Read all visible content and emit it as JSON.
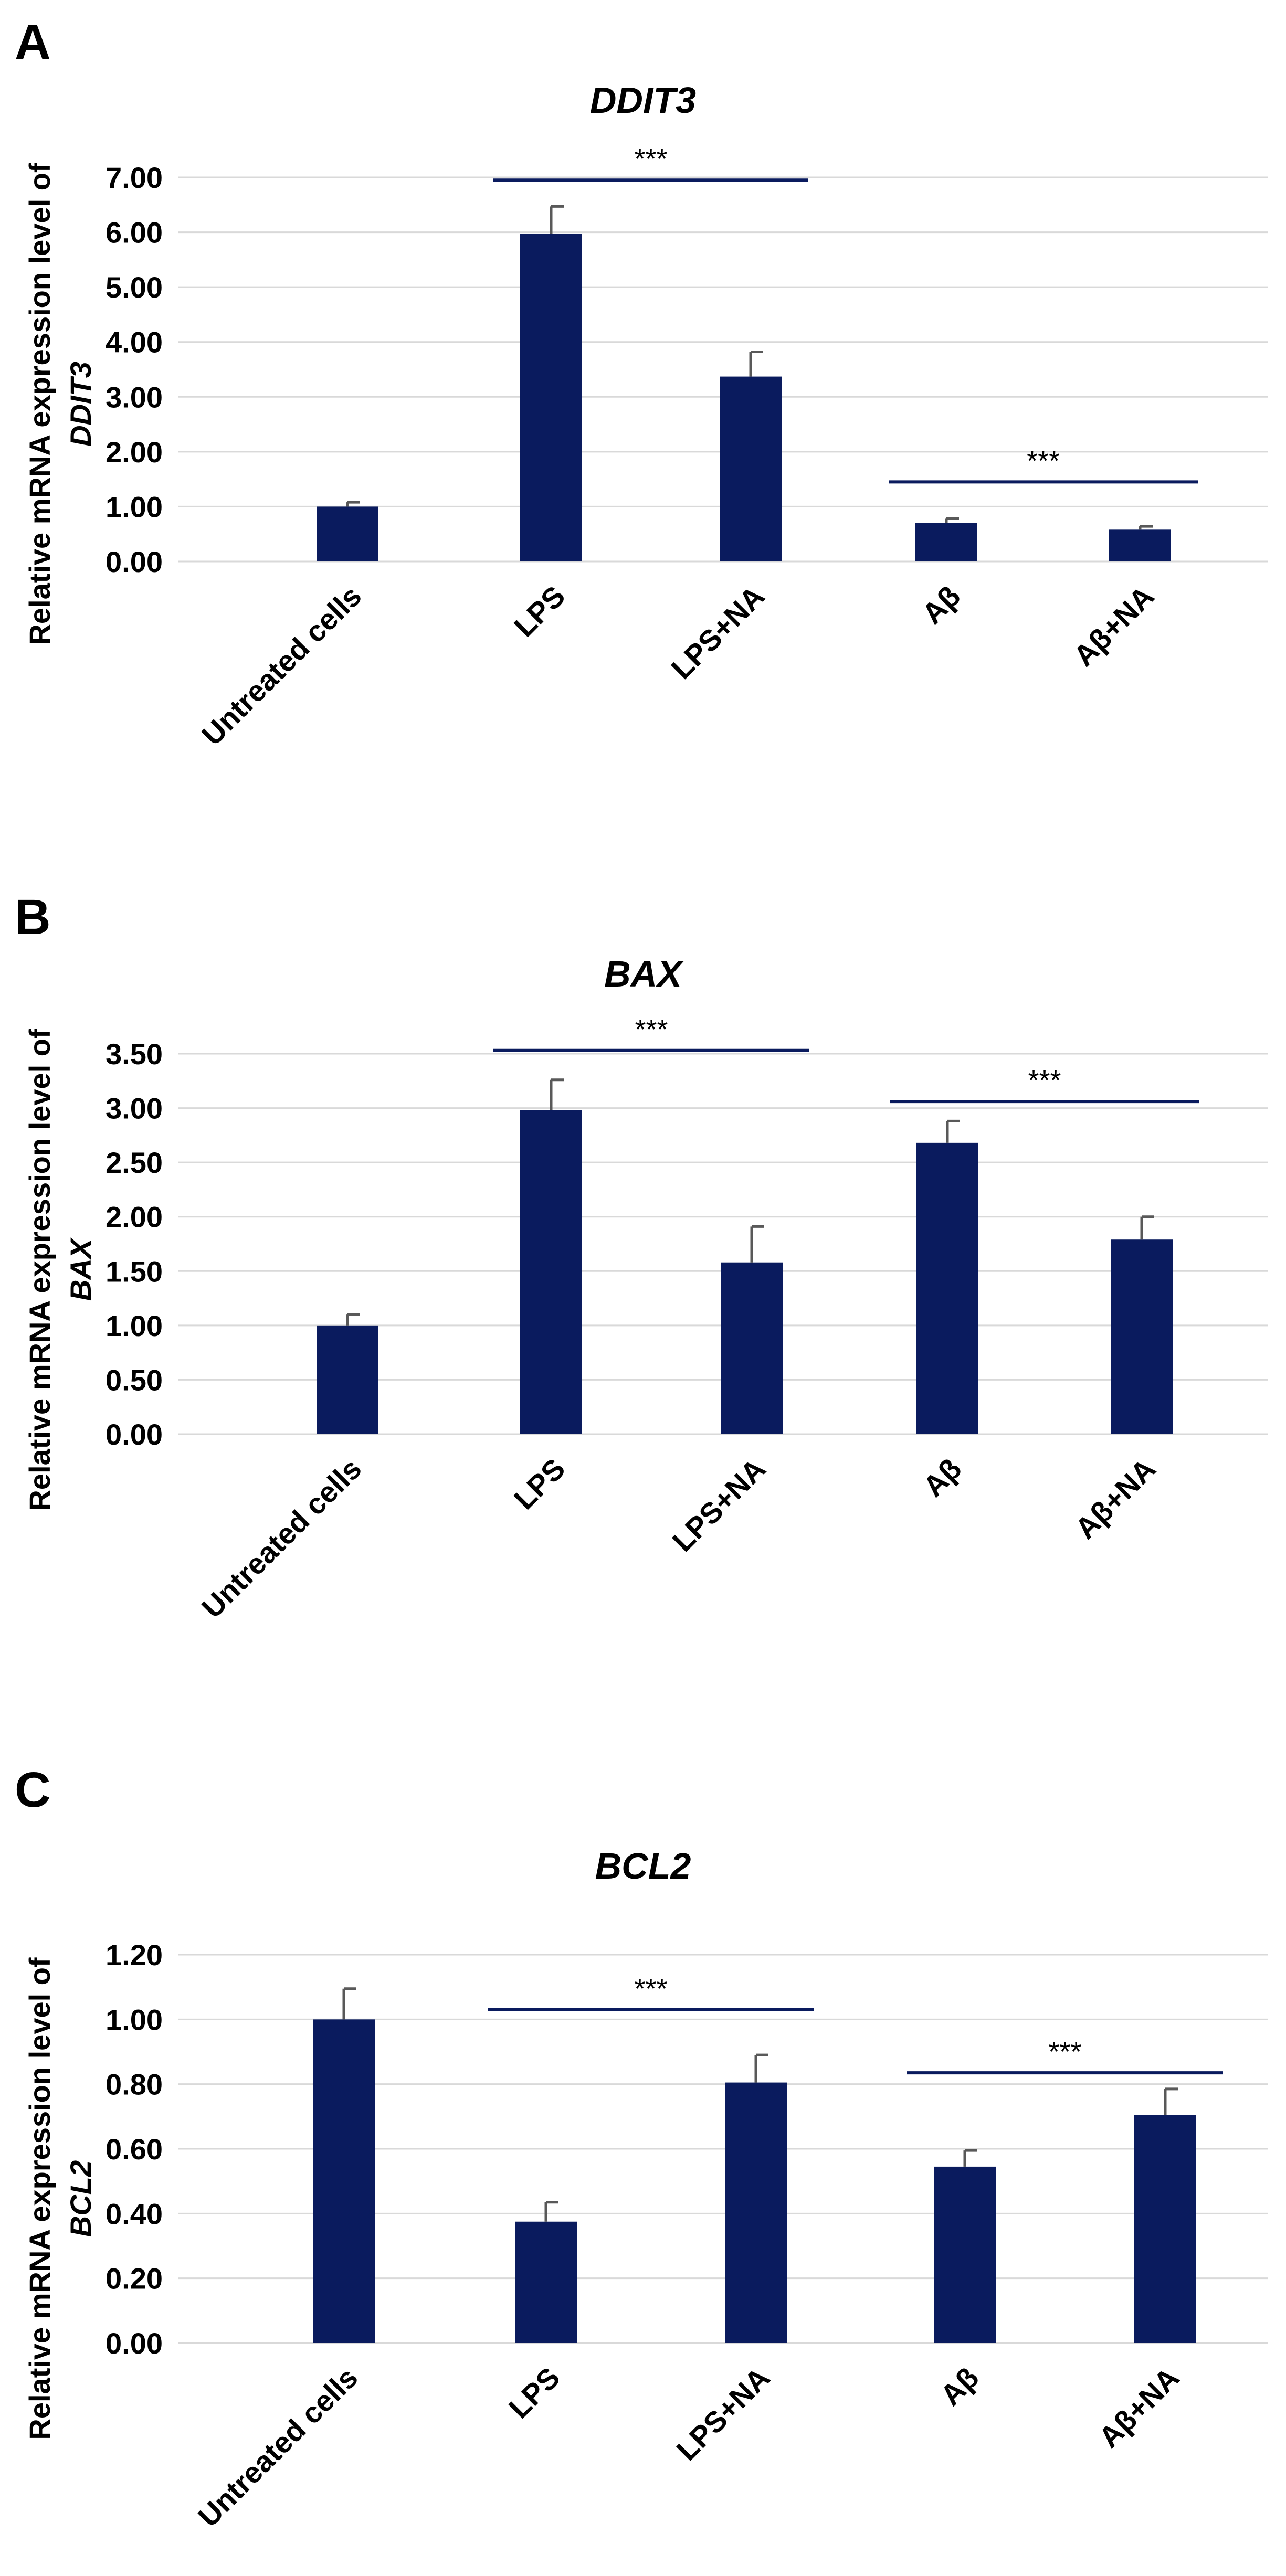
{
  "chart_data": [
    {
      "panel": "A",
      "type": "bar",
      "title": "DDIT3",
      "ylabel": "Relative mRNA expression level of",
      "ylabel_gene": "DDIT3",
      "xlabel": "",
      "categories": [
        "Untreated cells",
        "LPS",
        "LPS+NA",
        "Aβ",
        "Aβ+NA"
      ],
      "values": [
        1.0,
        5.97,
        3.37,
        0.7,
        0.58
      ],
      "errors": [
        0.08,
        0.5,
        0.45,
        0.08,
        0.06
      ],
      "ylim": [
        0,
        7
      ],
      "yticks": [
        "0.00",
        "1.00",
        "2.00",
        "3.00",
        "4.00",
        "5.00",
        "6.00",
        "7.00"
      ],
      "grid": true,
      "significance": [
        {
          "from": 1,
          "to": 2,
          "level": 6.95,
          "label": "***"
        },
        {
          "from": 3,
          "to": 4,
          "level": 1.45,
          "label": "***"
        }
      ]
    },
    {
      "panel": "B",
      "type": "bar",
      "title": "BAX",
      "ylabel": "Relative mRNA expression level of",
      "ylabel_gene": "BAX",
      "xlabel": "",
      "categories": [
        "Untreated cells",
        "LPS",
        "LPS+NA",
        "Aβ",
        "Aβ+NA"
      ],
      "values": [
        1.0,
        2.98,
        1.58,
        2.68,
        1.79
      ],
      "errors": [
        0.1,
        0.28,
        0.33,
        0.2,
        0.21
      ],
      "ylim": [
        0,
        3.5
      ],
      "yticks": [
        "0.00",
        "0.50",
        "1.00",
        "1.50",
        "2.00",
        "2.50",
        "3.00",
        "3.50"
      ],
      "grid": true,
      "significance": [
        {
          "from": 1,
          "to": 2,
          "level": 3.53,
          "label": "***"
        },
        {
          "from": 3,
          "to": 4,
          "level": 3.06,
          "label": "***"
        }
      ]
    },
    {
      "panel": "C",
      "type": "bar",
      "title": "BCL2",
      "ylabel": "Relative mRNA expression level of",
      "ylabel_gene": "BCL2",
      "xlabel": "",
      "categories": [
        "Untreated cells",
        "LPS",
        "LPS+NA",
        "Aβ",
        "Aβ+NA"
      ],
      "values": [
        1.0,
        0.375,
        0.805,
        0.545,
        0.705
      ],
      "errors": [
        0.095,
        0.06,
        0.085,
        0.05,
        0.08
      ],
      "ylim": [
        0,
        1.2
      ],
      "yticks": [
        "0.00",
        "0.20",
        "0.40",
        "0.60",
        "0.80",
        "1.00",
        "1.20"
      ],
      "grid": true,
      "significance": [
        {
          "from": 1,
          "to": 2,
          "level": 1.03,
          "label": "***"
        },
        {
          "from": 3,
          "to": 4,
          "level": 0.835,
          "label": "***"
        }
      ]
    }
  ],
  "colors": {
    "bar": "#0a1b5e",
    "error_bar": "#595959",
    "significance_line": "#0a1b5e",
    "gridline": "#d9d9d9"
  }
}
